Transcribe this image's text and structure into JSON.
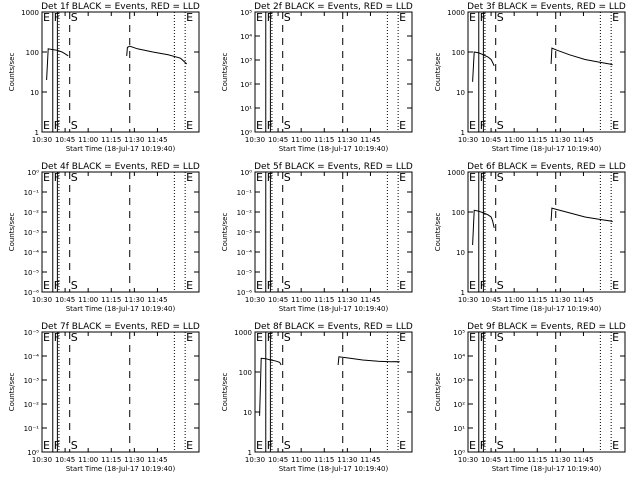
{
  "chart_data": {
    "type": "line",
    "layout": "3x3 grid",
    "xlabel": "Start Time (18-Jul-17 10:19:40)",
    "ylabel": "Counts/sec",
    "xticks": [
      "10:30",
      "10:45",
      "11:00",
      "11:15",
      "11:30",
      "11:45"
    ],
    "xlim_minutes": [
      10.33,
      112.33
    ],
    "yscale": "log",
    "markers": {
      "dotted_minutes": [
        10.33,
        21.33,
        96.33,
        103.33
      ],
      "solid_minutes": [
        17.33,
        20.33
      ],
      "dashed_minutes": [
        28.33,
        67.33
      ],
      "labels": [
        {
          "text": "E",
          "minute": 10.33
        },
        {
          "text": "F",
          "minute": 17.33
        },
        {
          "text": "S",
          "minute": 28.33
        },
        {
          "text": "E",
          "minute": 103.33
        }
      ]
    },
    "panels": [
      {
        "title": "Det 1f BLACK = Events, RED = LLD",
        "yticks": [
          "1",
          "10",
          "100",
          "1000"
        ],
        "ylim": [
          1,
          1000
        ],
        "segments": [
          [
            [
              13.33,
              20
            ],
            [
              14.33,
              120
            ],
            [
              17.33,
              115
            ],
            [
              20.33,
              110
            ],
            [
              23.33,
              100
            ],
            [
              25.33,
              90
            ],
            [
              26.33,
              85
            ],
            [
              27.33,
              80
            ]
          ],
          [
            [
              65.33,
              80
            ],
            [
              65.83,
              130
            ],
            [
              67.33,
              140
            ],
            [
              72.33,
              120
            ],
            [
              82.33,
              100
            ],
            [
              92.33,
              85
            ],
            [
              100.33,
              70
            ],
            [
              103.33,
              55
            ],
            [
              104.33,
              50
            ]
          ]
        ]
      },
      {
        "title": "Det 2f BLACK = Events, RED = LLD",
        "yticks": [
          "10⁰",
          "10¹",
          "10²",
          "10³",
          "10⁴",
          "10⁵"
        ],
        "ylim": [
          1,
          100000
        ],
        "segments": []
      },
      {
        "title": "Det 3f BLACK = Events, RED = LLD",
        "yticks": [
          "1",
          "10",
          "100",
          "1000"
        ],
        "ylim": [
          1,
          1000
        ],
        "segments": [
          [
            [
              13.33,
              18
            ],
            [
              14.33,
              100
            ],
            [
              17.33,
              95
            ],
            [
              20.33,
              85
            ],
            [
              23.33,
              75
            ],
            [
              25.33,
              65
            ],
            [
              26.33,
              55
            ],
            [
              27.33,
              45
            ]
          ],
          [
            [
              64.33,
              50
            ],
            [
              64.83,
              125
            ],
            [
              68.33,
              110
            ],
            [
              76.33,
              85
            ],
            [
              86.33,
              65
            ],
            [
              96.33,
              55
            ],
            [
              102.33,
              50
            ],
            [
              104.33,
              48
            ]
          ]
        ]
      },
      {
        "title": "Det 4f BLACK = Events, RED = LLD",
        "yticks": [
          "10⁻⁶",
          "10⁻⁵",
          "10⁻⁴",
          "10⁻³",
          "10⁻²",
          "10⁻¹",
          "10⁰"
        ],
        "ylim": [
          1,
          1000000
        ],
        "segments": []
      },
      {
        "title": "Det 5f BLACK = Events, RED = LLD",
        "yticks": [
          "10⁻⁶",
          "10⁻⁵",
          "10⁻⁴",
          "10⁻³",
          "10⁻²",
          "10⁻¹",
          "10⁰"
        ],
        "ylim": [
          1,
          1000000
        ],
        "segments": []
      },
      {
        "title": "Det 6f BLACK = Events, RED = LLD",
        "yticks": [
          "1",
          "10",
          "100",
          "1000"
        ],
        "ylim": [
          1,
          1000
        ],
        "segments": [
          [
            [
              13.33,
              15
            ],
            [
              14.33,
              110
            ],
            [
              17.33,
              105
            ],
            [
              20.33,
              95
            ],
            [
              23.33,
              85
            ],
            [
              25.33,
              75
            ],
            [
              26.33,
              60
            ],
            [
              27.33,
              40
            ]
          ],
          [
            [
              64.33,
              60
            ],
            [
              64.83,
              125
            ],
            [
              68.33,
              115
            ],
            [
              76.33,
              95
            ],
            [
              86.33,
              75
            ],
            [
              96.33,
              65
            ],
            [
              102.33,
              60
            ],
            [
              104.33,
              58
            ]
          ]
        ]
      },
      {
        "title": "Det 7f BLACK = Events, RED = LLD",
        "yticks": [
          "10⁰",
          "10⁻¹",
          "10⁻²",
          "10⁻³",
          "10⁻⁴",
          "10⁻⁵"
        ],
        "ylim": [
          1,
          100000
        ],
        "segments": []
      },
      {
        "title": "Det 8f BLACK = Events, RED = LLD",
        "yticks": [
          "1",
          "10",
          "100",
          "1000"
        ],
        "ylim": [
          1,
          1000
        ],
        "segments": [
          [
            [
              13.33,
              8
            ],
            [
              14.33,
              220
            ],
            [
              17.33,
              215
            ],
            [
              20.33,
              200
            ],
            [
              23.33,
              190
            ],
            [
              25.33,
              180
            ],
            [
              26.33,
              175
            ],
            [
              27.33,
              150
            ]
          ],
          [
            [
              64.33,
              150
            ],
            [
              64.83,
              240
            ],
            [
              70.33,
              225
            ],
            [
              80.33,
              200
            ],
            [
              90.33,
              185
            ],
            [
              98.33,
              180
            ],
            [
              102.33,
              182
            ],
            [
              104.33,
              180
            ]
          ]
        ]
      },
      {
        "title": "Det 9f BLACK = Events, RED = LLD",
        "yticks": [
          "10⁰",
          "10¹",
          "10²",
          "10³",
          "10⁴",
          "10⁵"
        ],
        "ylim": [
          1,
          100000
        ],
        "segments": []
      }
    ]
  }
}
